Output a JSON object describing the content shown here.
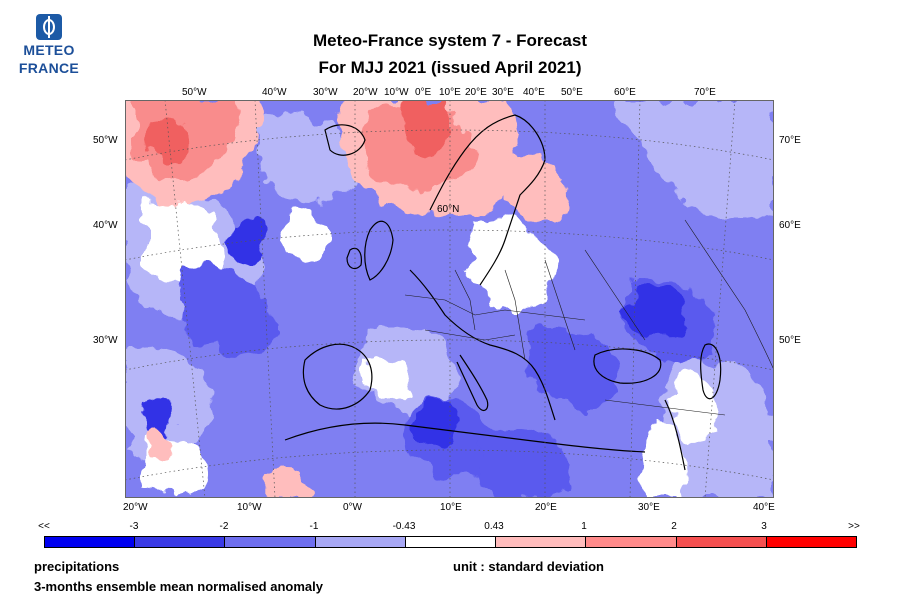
{
  "logo": {
    "line1": "METEO",
    "line2": "FRANCE"
  },
  "title": {
    "line1": "Meteo-France system 7  -  Forecast",
    "line2": "For MJJ 2021      (issued April 2021)"
  },
  "map": {
    "top_labels": [
      "50°W",
      "40°W",
      "30°W",
      "20°W",
      "10°W",
      "0°E",
      "10°E",
      "20°E",
      "30°E",
      "40°E",
      "50°E",
      "60°E",
      "70°E"
    ],
    "bottom_labels": [
      "20°W",
      "10°W",
      "0°W",
      "10°E",
      "20°E",
      "30°E",
      "40°E"
    ],
    "left_labels": [
      "50°W",
      "40°W",
      "30°W"
    ],
    "right_labels": [
      "70°E",
      "60°E",
      "50°E"
    ],
    "inner_label": "60°N",
    "palette": {
      "strong_blue": "#3030e6",
      "blue": "#5a5aee",
      "mid_blue": "#7f7ff2",
      "light_blue": "#b6b6f8",
      "white": "#ffffff",
      "light_red": "#ffbdbd",
      "mid_red": "#f98c8c",
      "red": "#f06060"
    }
  },
  "colorbar": {
    "labels": [
      "<<",
      "-3",
      "-2",
      "-1",
      "-0.43",
      "0.43",
      "1",
      "2",
      "3",
      ">>"
    ],
    "colors": [
      "#0000f0",
      "#3a3ae6",
      "#6e6eee",
      "#a8a8f5",
      "#ffffff",
      "#ffbcbc",
      "#ff8a8a",
      "#f55050",
      "#ff0000"
    ]
  },
  "footer": {
    "left1": "precipitations",
    "left2": "3-months ensemble mean normalised anomaly",
    "right": "unit : standard deviation"
  }
}
